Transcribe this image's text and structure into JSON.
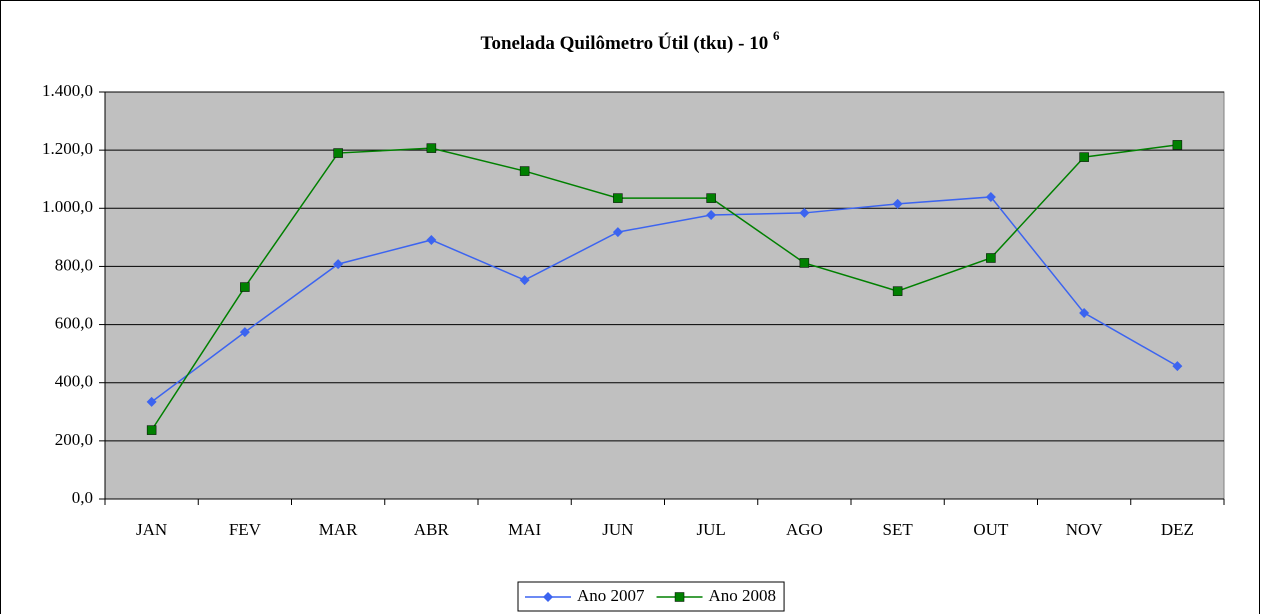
{
  "chart_data": {
    "type": "line",
    "title": "Tonelada Quilômetro Útil (tku) - 10",
    "title_exponent": "6",
    "categories": [
      "JAN",
      "FEV",
      "MAR",
      "ABR",
      "MAI",
      "JUN",
      "JUL",
      "AGO",
      "SET",
      "OUT",
      "NOV",
      "DEZ"
    ],
    "series": [
      {
        "name": "Ano 2007",
        "color": "#3c64f0",
        "marker": "diamond",
        "values": [
          334,
          574,
          808,
          891,
          753,
          918,
          977,
          984,
          1015,
          1039,
          640,
          457
        ]
      },
      {
        "name": "Ano 2008",
        "color": "#008000",
        "marker": "square",
        "values": [
          237,
          729,
          1190,
          1207,
          1128,
          1035,
          1035,
          812,
          715,
          829,
          1176,
          1218
        ]
      }
    ],
    "ylim": [
      0,
      1400
    ],
    "yticks": [
      {
        "value": 0,
        "label": "0,0"
      },
      {
        "value": 200,
        "label": "200,0"
      },
      {
        "value": 400,
        "label": "400,0"
      },
      {
        "value": 600,
        "label": "600,0"
      },
      {
        "value": 800,
        "label": "800,0"
      },
      {
        "value": 1000,
        "label": "1.000,0"
      },
      {
        "value": 1200,
        "label": "1.200,0"
      },
      {
        "value": 1400,
        "label": "1.400,0"
      }
    ],
    "grid": true,
    "plot_background": "#c0c0c0",
    "legend": "bottom"
  }
}
